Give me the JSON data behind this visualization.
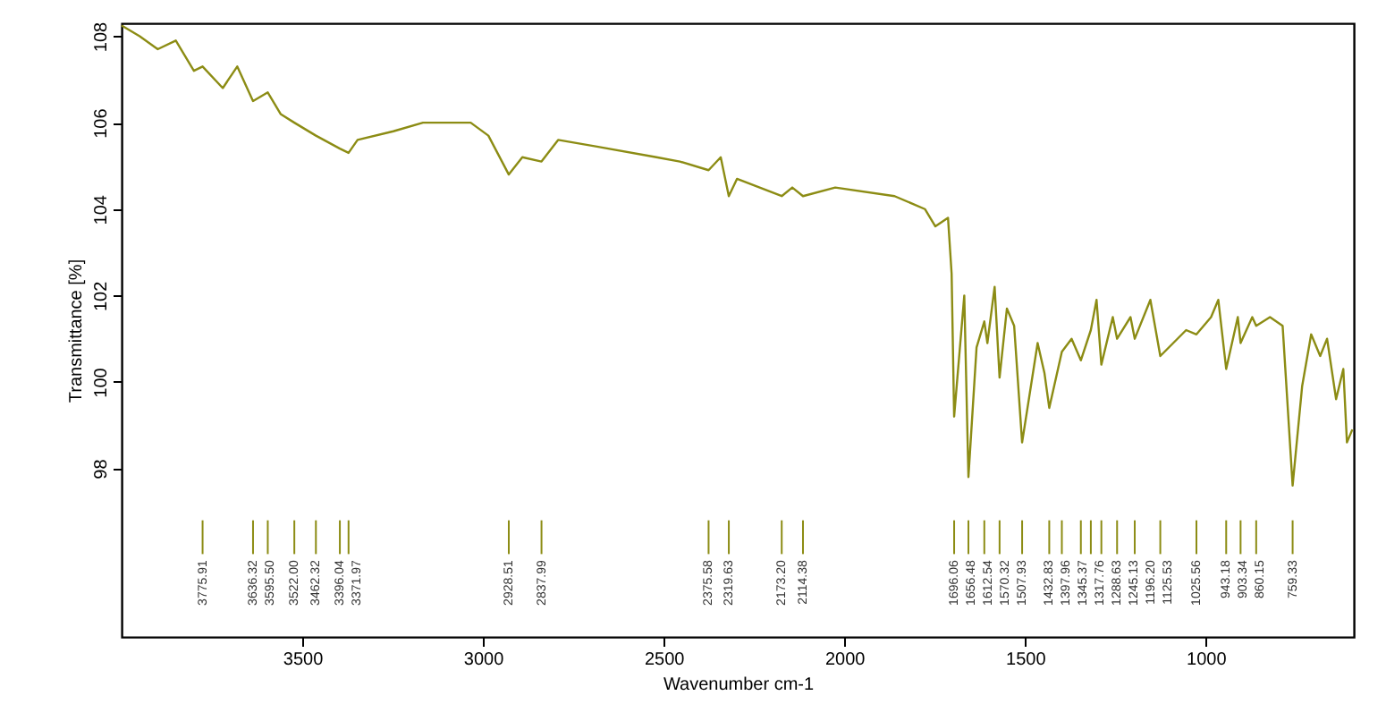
{
  "chart_data": {
    "type": "line",
    "xlabel": "Wavenumber cm-1",
    "ylabel": "Transmittance [%]",
    "xlim": [
      4000,
      590
    ],
    "xticks": [
      3500,
      3000,
      2500,
      2000,
      1500,
      1000
    ],
    "ylim": [
      94.1,
      108.3
    ],
    "yticks": [
      98,
      100,
      102,
      104,
      106,
      108
    ],
    "grid": false,
    "marker": "none",
    "line_style": "solid",
    "series": [
      {
        "color": "#8c8c14",
        "x": [
          4000,
          3950,
          3900,
          3850,
          3800,
          3775.91,
          3720,
          3680,
          3636.32,
          3595.5,
          3560,
          3522,
          3462.32,
          3396.04,
          3371.97,
          3347,
          3248,
          3166,
          3034,
          2985,
          2928.51,
          2891,
          2837.99,
          2792,
          2688,
          2520,
          2455,
          2375.58,
          2342,
          2319.63,
          2297,
          2173.2,
          2144,
          2114.38,
          2025,
          1861,
          1777,
          1748,
          1713,
          1703,
          1696.06,
          1668,
          1656.48,
          1634,
          1612.54,
          1604,
          1584,
          1570.32,
          1550,
          1530,
          1507.93,
          1465,
          1446,
          1432.83,
          1397.96,
          1371,
          1345.37,
          1317.76,
          1302,
          1288.63,
          1257,
          1245.13,
          1208,
          1196.2,
          1153,
          1125.53,
          1054,
          1025.56,
          985,
          965,
          943.18,
          911,
          903.34,
          871,
          860.15,
          822,
          787,
          759.33,
          733,
          708,
          683,
          664,
          639,
          619,
          609,
          594
        ],
        "values": [
          108.25,
          108.0,
          107.7,
          107.9,
          107.2,
          107.3,
          106.8,
          107.3,
          106.5,
          106.7,
          106.2,
          106.0,
          105.7,
          105.4,
          105.3,
          105.6,
          105.8,
          106.0,
          106.0,
          105.7,
          104.8,
          105.2,
          105.1,
          105.6,
          105.45,
          105.2,
          105.1,
          104.9,
          105.2,
          104.3,
          104.7,
          104.3,
          104.5,
          104.3,
          104.5,
          104.3,
          104.0,
          103.6,
          103.8,
          102.5,
          99.2,
          102.0,
          97.8,
          100.8,
          101.4,
          100.9,
          102.2,
          100.1,
          101.7,
          101.3,
          98.6,
          100.9,
          100.2,
          99.4,
          100.7,
          101.0,
          100.5,
          101.2,
          101.9,
          100.4,
          101.5,
          101.0,
          101.5,
          101.0,
          101.9,
          100.6,
          101.2,
          101.1,
          101.5,
          101.9,
          100.3,
          101.5,
          100.9,
          101.5,
          101.3,
          101.5,
          101.3,
          97.6,
          99.9,
          101.1,
          100.6,
          101.0,
          99.6,
          100.3,
          98.6,
          98.9
        ]
      }
    ],
    "ref_lines": [
      {
        "axis": "x",
        "value": 3775.91,
        "label": "3775.91"
      },
      {
        "axis": "x",
        "value": 3636.32,
        "label": "3636.32"
      },
      {
        "axis": "x",
        "value": 3595.5,
        "label": "3595.50"
      },
      {
        "axis": "x",
        "value": 3522.0,
        "label": "3522.00"
      },
      {
        "axis": "x",
        "value": 3462.32,
        "label": "3462.32"
      },
      {
        "axis": "x",
        "value": 3396.04,
        "label": "3396.04"
      },
      {
        "axis": "x",
        "value": 3371.97,
        "label": "3371.97"
      },
      {
        "axis": "x",
        "value": 2928.51,
        "label": "2928.51"
      },
      {
        "axis": "x",
        "value": 2837.99,
        "label": "2837.99"
      },
      {
        "axis": "x",
        "value": 2375.58,
        "label": "2375.58"
      },
      {
        "axis": "x",
        "value": 2319.63,
        "label": "2319.63"
      },
      {
        "axis": "x",
        "value": 2173.2,
        "label": "2173.20"
      },
      {
        "axis": "x",
        "value": 2114.38,
        "label": "2114.38"
      },
      {
        "axis": "x",
        "value": 1696.06,
        "label": "1696.06"
      },
      {
        "axis": "x",
        "value": 1656.48,
        "label": "1656.48"
      },
      {
        "axis": "x",
        "value": 1612.54,
        "label": "1612.54"
      },
      {
        "axis": "x",
        "value": 1570.32,
        "label": "1570.32"
      },
      {
        "axis": "x",
        "value": 1507.93,
        "label": "1507.93"
      },
      {
        "axis": "x",
        "value": 1432.83,
        "label": "1432.83"
      },
      {
        "axis": "x",
        "value": 1397.96,
        "label": "1397.96"
      },
      {
        "axis": "x",
        "value": 1345.37,
        "label": "1345.37"
      },
      {
        "axis": "x",
        "value": 1317.76,
        "label": "1317.76"
      },
      {
        "axis": "x",
        "value": 1288.63,
        "label": "1288.63"
      },
      {
        "axis": "x",
        "value": 1245.13,
        "label": "1245.13"
      },
      {
        "axis": "x",
        "value": 1196.2,
        "label": "1196.20"
      },
      {
        "axis": "x",
        "value": 1125.53,
        "label": "1125.53"
      },
      {
        "axis": "x",
        "value": 1025.56,
        "label": "1025.56"
      },
      {
        "axis": "x",
        "value": 943.18,
        "label": "943.18"
      },
      {
        "axis": "x",
        "value": 903.34,
        "label": "903.34"
      },
      {
        "axis": "x",
        "value": 860.15,
        "label": "860.15"
      },
      {
        "axis": "x",
        "value": 759.33,
        "label": "759.33"
      }
    ]
  }
}
